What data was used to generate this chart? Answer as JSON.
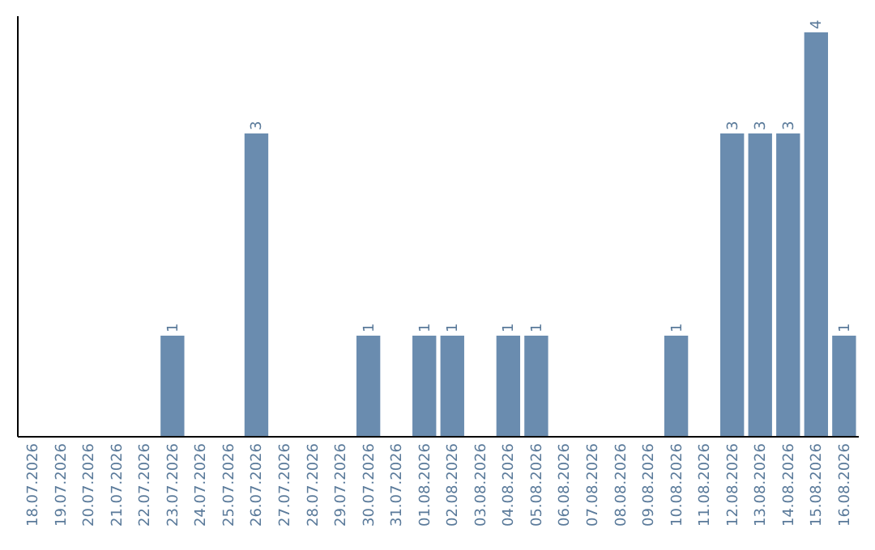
{
  "chart_data": {
    "type": "bar",
    "categories": [
      "18.07.2026",
      "19.07.2026",
      "20.07.2026",
      "21.07.2026",
      "22.07.2026",
      "23.07.2026",
      "24.07.2026",
      "25.07.2026",
      "26.07.2026",
      "27.07.2026",
      "28.07.2026",
      "29.07.2026",
      "30.07.2026",
      "31.07.2026",
      "01.08.2026",
      "02.08.2026",
      "03.08.2026",
      "04.08.2026",
      "05.08.2026",
      "06.08.2026",
      "07.08.2026",
      "08.08.2026",
      "09.08.2026",
      "10.08.2026",
      "11.08.2026",
      "12.08.2026",
      "13.08.2026",
      "14.08.2026",
      "15.08.2026",
      "16.08.2026"
    ],
    "values": [
      0,
      0,
      0,
      0,
      0,
      1,
      0,
      0,
      3,
      0,
      0,
      0,
      1,
      0,
      1,
      1,
      0,
      1,
      1,
      0,
      0,
      0,
      0,
      1,
      0,
      3,
      3,
      3,
      4,
      1
    ],
    "value_labels": [
      null,
      null,
      null,
      null,
      null,
      "1",
      null,
      null,
      "3",
      null,
      null,
      null,
      "1",
      null,
      "1",
      "1",
      null,
      "1",
      "1",
      null,
      null,
      null,
      null,
      "1",
      null,
      "3",
      "3",
      "3",
      "4",
      "1"
    ],
    "color": "#6a8caf",
    "tick_labels": "x"
  }
}
